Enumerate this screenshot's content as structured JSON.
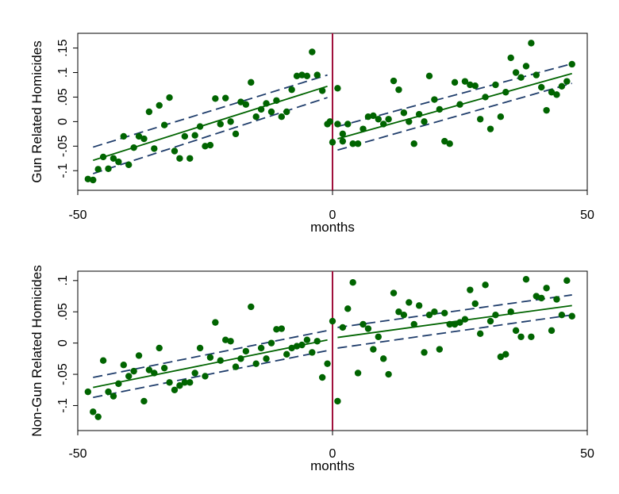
{
  "chart_data": [
    {
      "type": "scatter",
      "xlabel": "months",
      "ylabel": "Gun Related Homicides",
      "xlim": [
        -50,
        50
      ],
      "ylim": [
        -0.14,
        0.18
      ],
      "xticks": [
        -50,
        0,
        50
      ],
      "xtick_labels": [
        "-50",
        "0",
        "50"
      ],
      "yticks": [
        -0.1,
        -0.05,
        0,
        0.05,
        0.1,
        0.15
      ],
      "ytick_labels": [
        "-.1",
        "-.05",
        "0",
        ".05",
        ".1",
        ".15"
      ],
      "grid": false,
      "cutoff_x": 0,
      "colors": {
        "points": "#006400",
        "fit": "#006400",
        "ci": "#1f3d6b",
        "cutoff": "#a0103c"
      },
      "points": [
        [
          -48,
          -0.117
        ],
        [
          -47,
          -0.119
        ],
        [
          -46,
          -0.097
        ],
        [
          -45,
          -0.072
        ],
        [
          -44,
          -0.096
        ],
        [
          -43,
          -0.075
        ],
        [
          -42,
          -0.082
        ],
        [
          -41,
          -0.03
        ],
        [
          -40,
          -0.088
        ],
        [
          -39,
          -0.053
        ],
        [
          -38,
          -0.03
        ],
        [
          -37,
          -0.035
        ],
        [
          -36,
          0.02
        ],
        [
          -35,
          -0.055
        ],
        [
          -34,
          0.033
        ],
        [
          -33,
          -0.007
        ],
        [
          -32,
          0.049
        ],
        [
          -31,
          -0.06
        ],
        [
          -30,
          -0.075
        ],
        [
          -29,
          -0.03
        ],
        [
          -28,
          -0.075
        ],
        [
          -27,
          -0.028
        ],
        [
          -26,
          -0.01
        ],
        [
          -25,
          -0.05
        ],
        [
          -24,
          -0.048
        ],
        [
          -23,
          0.047
        ],
        [
          -22,
          -0.005
        ],
        [
          -21,
          0.048
        ],
        [
          -20,
          0.0
        ],
        [
          -19,
          -0.025
        ],
        [
          -18,
          0.04
        ],
        [
          -17,
          0.035
        ],
        [
          -16,
          0.08
        ],
        [
          -15,
          0.01
        ],
        [
          -14,
          0.025
        ],
        [
          -13,
          0.037
        ],
        [
          -12,
          0.02
        ],
        [
          -11,
          0.043
        ],
        [
          -10,
          0.01
        ],
        [
          -9,
          0.02
        ],
        [
          -8,
          0.065
        ],
        [
          -7,
          0.093
        ],
        [
          -6,
          0.095
        ],
        [
          -5,
          0.093
        ],
        [
          -4,
          0.142
        ],
        [
          -3,
          0.095
        ],
        [
          -2,
          0.063
        ],
        [
          -1,
          -0.005
        ],
        [
          -0.5,
          0.0
        ],
        [
          1,
          0.068
        ],
        [
          2,
          -0.025
        ],
        [
          0,
          -0.042
        ],
        [
          1,
          -0.005
        ],
        [
          2,
          -0.04
        ],
        [
          3,
          -0.005
        ],
        [
          4,
          -0.045
        ],
        [
          5,
          -0.045
        ],
        [
          6,
          -0.015
        ],
        [
          7,
          0.01
        ],
        [
          8,
          0.012
        ],
        [
          9,
          0.005
        ],
        [
          10,
          -0.005
        ],
        [
          11,
          0.005
        ],
        [
          12,
          0.083
        ],
        [
          13,
          0.065
        ],
        [
          14,
          0.018
        ],
        [
          15,
          0.0
        ],
        [
          16,
          -0.045
        ],
        [
          17,
          0.015
        ],
        [
          18,
          0.0
        ],
        [
          19,
          0.093
        ],
        [
          20,
          0.045
        ],
        [
          21,
          0.025
        ],
        [
          22,
          -0.04
        ],
        [
          23,
          -0.045
        ],
        [
          24,
          0.08
        ],
        [
          25,
          0.035
        ],
        [
          26,
          0.082
        ],
        [
          27,
          0.075
        ],
        [
          28,
          0.073
        ],
        [
          29,
          0.005
        ],
        [
          30,
          0.05
        ],
        [
          31,
          -0.015
        ],
        [
          32,
          0.075
        ],
        [
          33,
          0.01
        ],
        [
          34,
          0.06
        ],
        [
          35,
          0.13
        ],
        [
          36,
          0.1
        ],
        [
          37,
          0.09
        ],
        [
          38,
          0.113
        ],
        [
          39,
          0.16
        ],
        [
          40,
          0.095
        ],
        [
          41,
          0.07
        ],
        [
          42,
          0.023
        ],
        [
          43,
          0.06
        ],
        [
          44,
          0.055
        ],
        [
          45,
          0.072
        ],
        [
          46,
          0.082
        ],
        [
          47,
          0.117
        ]
      ],
      "fit_left": {
        "x": [
          -47,
          -1
        ],
        "y": [
          -0.079,
          0.072
        ]
      },
      "ci_left": {
        "upper": [
          -0.052,
          0.095
        ],
        "lower": [
          -0.106,
          0.049
        ]
      },
      "fit_right": {
        "x": [
          1,
          47
        ],
        "y": [
          -0.035,
          0.098
        ]
      },
      "ci_right": {
        "upper": [
          -0.01,
          0.118
        ],
        "lower": [
          -0.058,
          0.078
        ]
      }
    },
    {
      "type": "scatter",
      "xlabel": "months",
      "ylabel": "Non-Gun Related Homicides",
      "xlim": [
        -50,
        50
      ],
      "ylim": [
        -0.14,
        0.115
      ],
      "xticks": [
        -50,
        0,
        50
      ],
      "xtick_labels": [
        "-50",
        "0",
        "50"
      ],
      "yticks": [
        -0.1,
        -0.05,
        0,
        0.05,
        0.1
      ],
      "ytick_labels": [
        "-.1",
        "-.05",
        "0",
        ".05",
        ".1"
      ],
      "grid": false,
      "cutoff_x": 0,
      "colors": {
        "points": "#006400",
        "fit": "#006400",
        "ci": "#1f3d6b",
        "cutoff": "#a0103c"
      },
      "points": [
        [
          -48,
          -0.078
        ],
        [
          -47,
          -0.11
        ],
        [
          -46,
          -0.118
        ],
        [
          -45,
          -0.028
        ],
        [
          -44,
          -0.078
        ],
        [
          -43,
          -0.085
        ],
        [
          -42,
          -0.065
        ],
        [
          -41,
          -0.035
        ],
        [
          -40,
          -0.053
        ],
        [
          -39,
          -0.045
        ],
        [
          -38,
          -0.02
        ],
        [
          -37,
          -0.093
        ],
        [
          -36,
          -0.043
        ],
        [
          -35,
          -0.048
        ],
        [
          -34,
          -0.008
        ],
        [
          -33,
          -0.04
        ],
        [
          -32,
          -0.063
        ],
        [
          -31,
          -0.075
        ],
        [
          -30,
          -0.068
        ],
        [
          -29,
          -0.063
        ],
        [
          -28,
          -0.063
        ],
        [
          -27,
          -0.048
        ],
        [
          -26,
          -0.008
        ],
        [
          -25,
          -0.053
        ],
        [
          -24,
          -0.023
        ],
        [
          -23,
          0.033
        ],
        [
          -22,
          -0.028
        ],
        [
          -21,
          0.005
        ],
        [
          -20,
          0.003
        ],
        [
          -19,
          -0.038
        ],
        [
          -18,
          -0.025
        ],
        [
          -17,
          -0.013
        ],
        [
          -16,
          0.058
        ],
        [
          -15,
          -0.033
        ],
        [
          -14,
          -0.008
        ],
        [
          -13,
          -0.025
        ],
        [
          -12,
          0.0
        ],
        [
          -11,
          0.022
        ],
        [
          -10,
          0.023
        ],
        [
          -9,
          -0.018
        ],
        [
          -8,
          -0.008
        ],
        [
          -7,
          -0.005
        ],
        [
          -6,
          -0.003
        ],
        [
          -5,
          0.005
        ],
        [
          -4,
          -0.015
        ],
        [
          -3,
          0.003
        ],
        [
          -2,
          -0.055
        ],
        [
          -1,
          -0.033
        ],
        [
          0,
          0.035
        ],
        [
          1,
          -0.093
        ],
        [
          2,
          0.025
        ],
        [
          3,
          0.055
        ],
        [
          4,
          0.097
        ],
        [
          5,
          -0.048
        ],
        [
          6,
          0.03
        ],
        [
          7,
          0.023
        ],
        [
          8,
          -0.01
        ],
        [
          9,
          0.01
        ],
        [
          10,
          -0.025
        ],
        [
          11,
          -0.05
        ],
        [
          12,
          0.08
        ],
        [
          13,
          0.05
        ],
        [
          14,
          0.045
        ],
        [
          15,
          0.065
        ],
        [
          16,
          0.03
        ],
        [
          17,
          0.06
        ],
        [
          18,
          -0.015
        ],
        [
          19,
          0.045
        ],
        [
          20,
          0.05
        ],
        [
          21,
          -0.01
        ],
        [
          22,
          0.048
        ],
        [
          23,
          0.03
        ],
        [
          24,
          0.03
        ],
        [
          25,
          0.033
        ],
        [
          26,
          0.038
        ],
        [
          27,
          0.085
        ],
        [
          28,
          0.063
        ],
        [
          29,
          0.015
        ],
        [
          30,
          0.093
        ],
        [
          31,
          0.035
        ],
        [
          32,
          0.045
        ],
        [
          33,
          -0.022
        ],
        [
          34,
          -0.018
        ],
        [
          35,
          0.05
        ],
        [
          36,
          0.02
        ],
        [
          37,
          0.01
        ],
        [
          38,
          0.102
        ],
        [
          39,
          0.01
        ],
        [
          40,
          0.075
        ],
        [
          41,
          0.072
        ],
        [
          42,
          0.088
        ],
        [
          43,
          0.02
        ],
        [
          44,
          0.07
        ],
        [
          45,
          0.045
        ],
        [
          46,
          0.1
        ],
        [
          47,
          0.043
        ]
      ],
      "fit_left": {
        "x": [
          -47,
          -1
        ],
        "y": [
          -0.071,
          0.005
        ]
      },
      "ci_left": {
        "upper": [
          -0.055,
          0.02
        ],
        "lower": [
          -0.087,
          -0.012
        ]
      },
      "fit_right": {
        "x": [
          1,
          47
        ],
        "y": [
          0.009,
          0.06
        ]
      },
      "ci_right": {
        "upper": [
          0.025,
          0.077
        ],
        "lower": [
          -0.008,
          0.045
        ]
      }
    }
  ]
}
